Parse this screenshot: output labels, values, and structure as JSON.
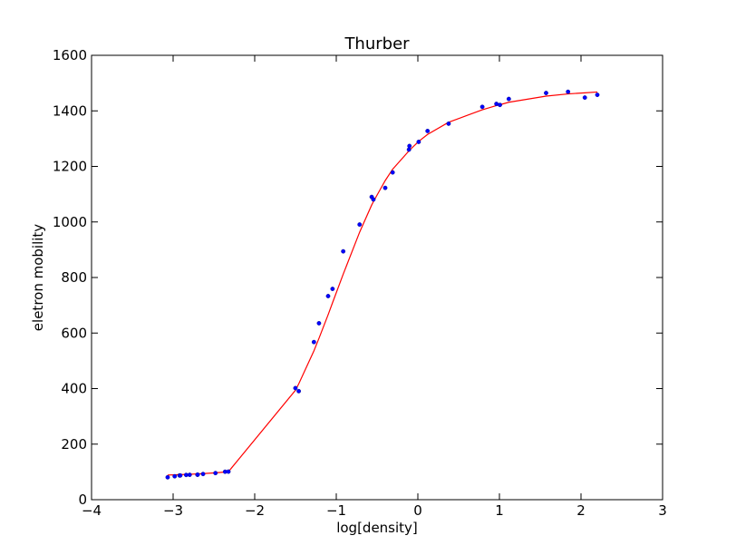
{
  "chart_data": {
    "type": "scatter",
    "title": "Thurber",
    "xlabel": "log[density]",
    "ylabel": "eletron mobility",
    "xlim": [
      -4,
      3
    ],
    "ylim": [
      0,
      1600
    ],
    "x_ticks": [
      "−4",
      "−3",
      "−2",
      "−1",
      "0",
      "1",
      "2",
      "3"
    ],
    "y_ticks": [
      "0",
      "200",
      "400",
      "600",
      "800",
      "1000",
      "1200",
      "1400",
      "1600"
    ],
    "grid": false,
    "colors": {
      "points": "#0000ff",
      "fit": "#ff0000",
      "frame": "#000000"
    },
    "series": [
      {
        "kind": "points",
        "x": [
          -3.067,
          -2.981,
          -2.921,
          -2.912,
          -2.84,
          -2.797,
          -2.702,
          -2.699,
          -2.633,
          -2.481,
          -2.363,
          -2.322,
          -1.501,
          -1.46,
          -1.274,
          -1.212,
          -1.1,
          -1.046,
          -0.915,
          -0.714,
          -0.566,
          -0.545,
          -0.4,
          -0.309,
          -0.109,
          -0.103,
          0.01,
          0.119,
          0.377,
          0.79,
          0.963,
          1.006,
          1.115,
          1.572,
          1.841,
          2.047,
          2.2
        ],
        "y": [
          80.574,
          84.248,
          87.264,
          87.195,
          89.076,
          89.608,
          89.868,
          90.101,
          92.405,
          95.854,
          100.696,
          101.06,
          401.672,
          390.724,
          567.534,
          635.316,
          733.054,
          759.087,
          894.206,
          990.785,
          1090.109,
          1080.914,
          1122.643,
          1178.351,
          1260.531,
          1273.514,
          1288.339,
          1327.543,
          1353.863,
          1414.509,
          1425.208,
          1421.384,
          1442.962,
          1464.35,
          1468.705,
          1447.894,
          1457.628
        ]
      },
      {
        "kind": "fit-line",
        "x": [
          -3.067,
          -2.981,
          -2.921,
          -2.912,
          -2.84,
          -2.797,
          -2.702,
          -2.699,
          -2.633,
          -2.481,
          -2.363,
          -2.322,
          -1.501,
          -1.46,
          -1.274,
          -1.212,
          -1.1,
          -1.046,
          -0.915,
          -0.714,
          -0.566,
          -0.545,
          -0.4,
          -0.309,
          -0.109,
          -0.103,
          0.01,
          0.119,
          0.377,
          0.79,
          0.963,
          1.006,
          1.115,
          1.572,
          1.841,
          2.047,
          2.2
        ],
        "y": [
          88.8,
          89.5,
          90.1,
          90.2,
          91.0,
          91.5,
          92.8,
          92.8,
          93.8,
          96.7,
          99.5,
          100.7,
          393.8,
          417.0,
          536.0,
          581.0,
          666.0,
          709.0,
          812.0,
          963.0,
          1061.0,
          1073.0,
          1149.0,
          1190.0,
          1256.0,
          1258.0,
          1290.0,
          1315.0,
          1359.0,
          1404.0,
          1419.0,
          1422.0,
          1431.0,
          1453.0,
          1461.0,
          1465.0,
          1468.0
        ]
      }
    ]
  }
}
